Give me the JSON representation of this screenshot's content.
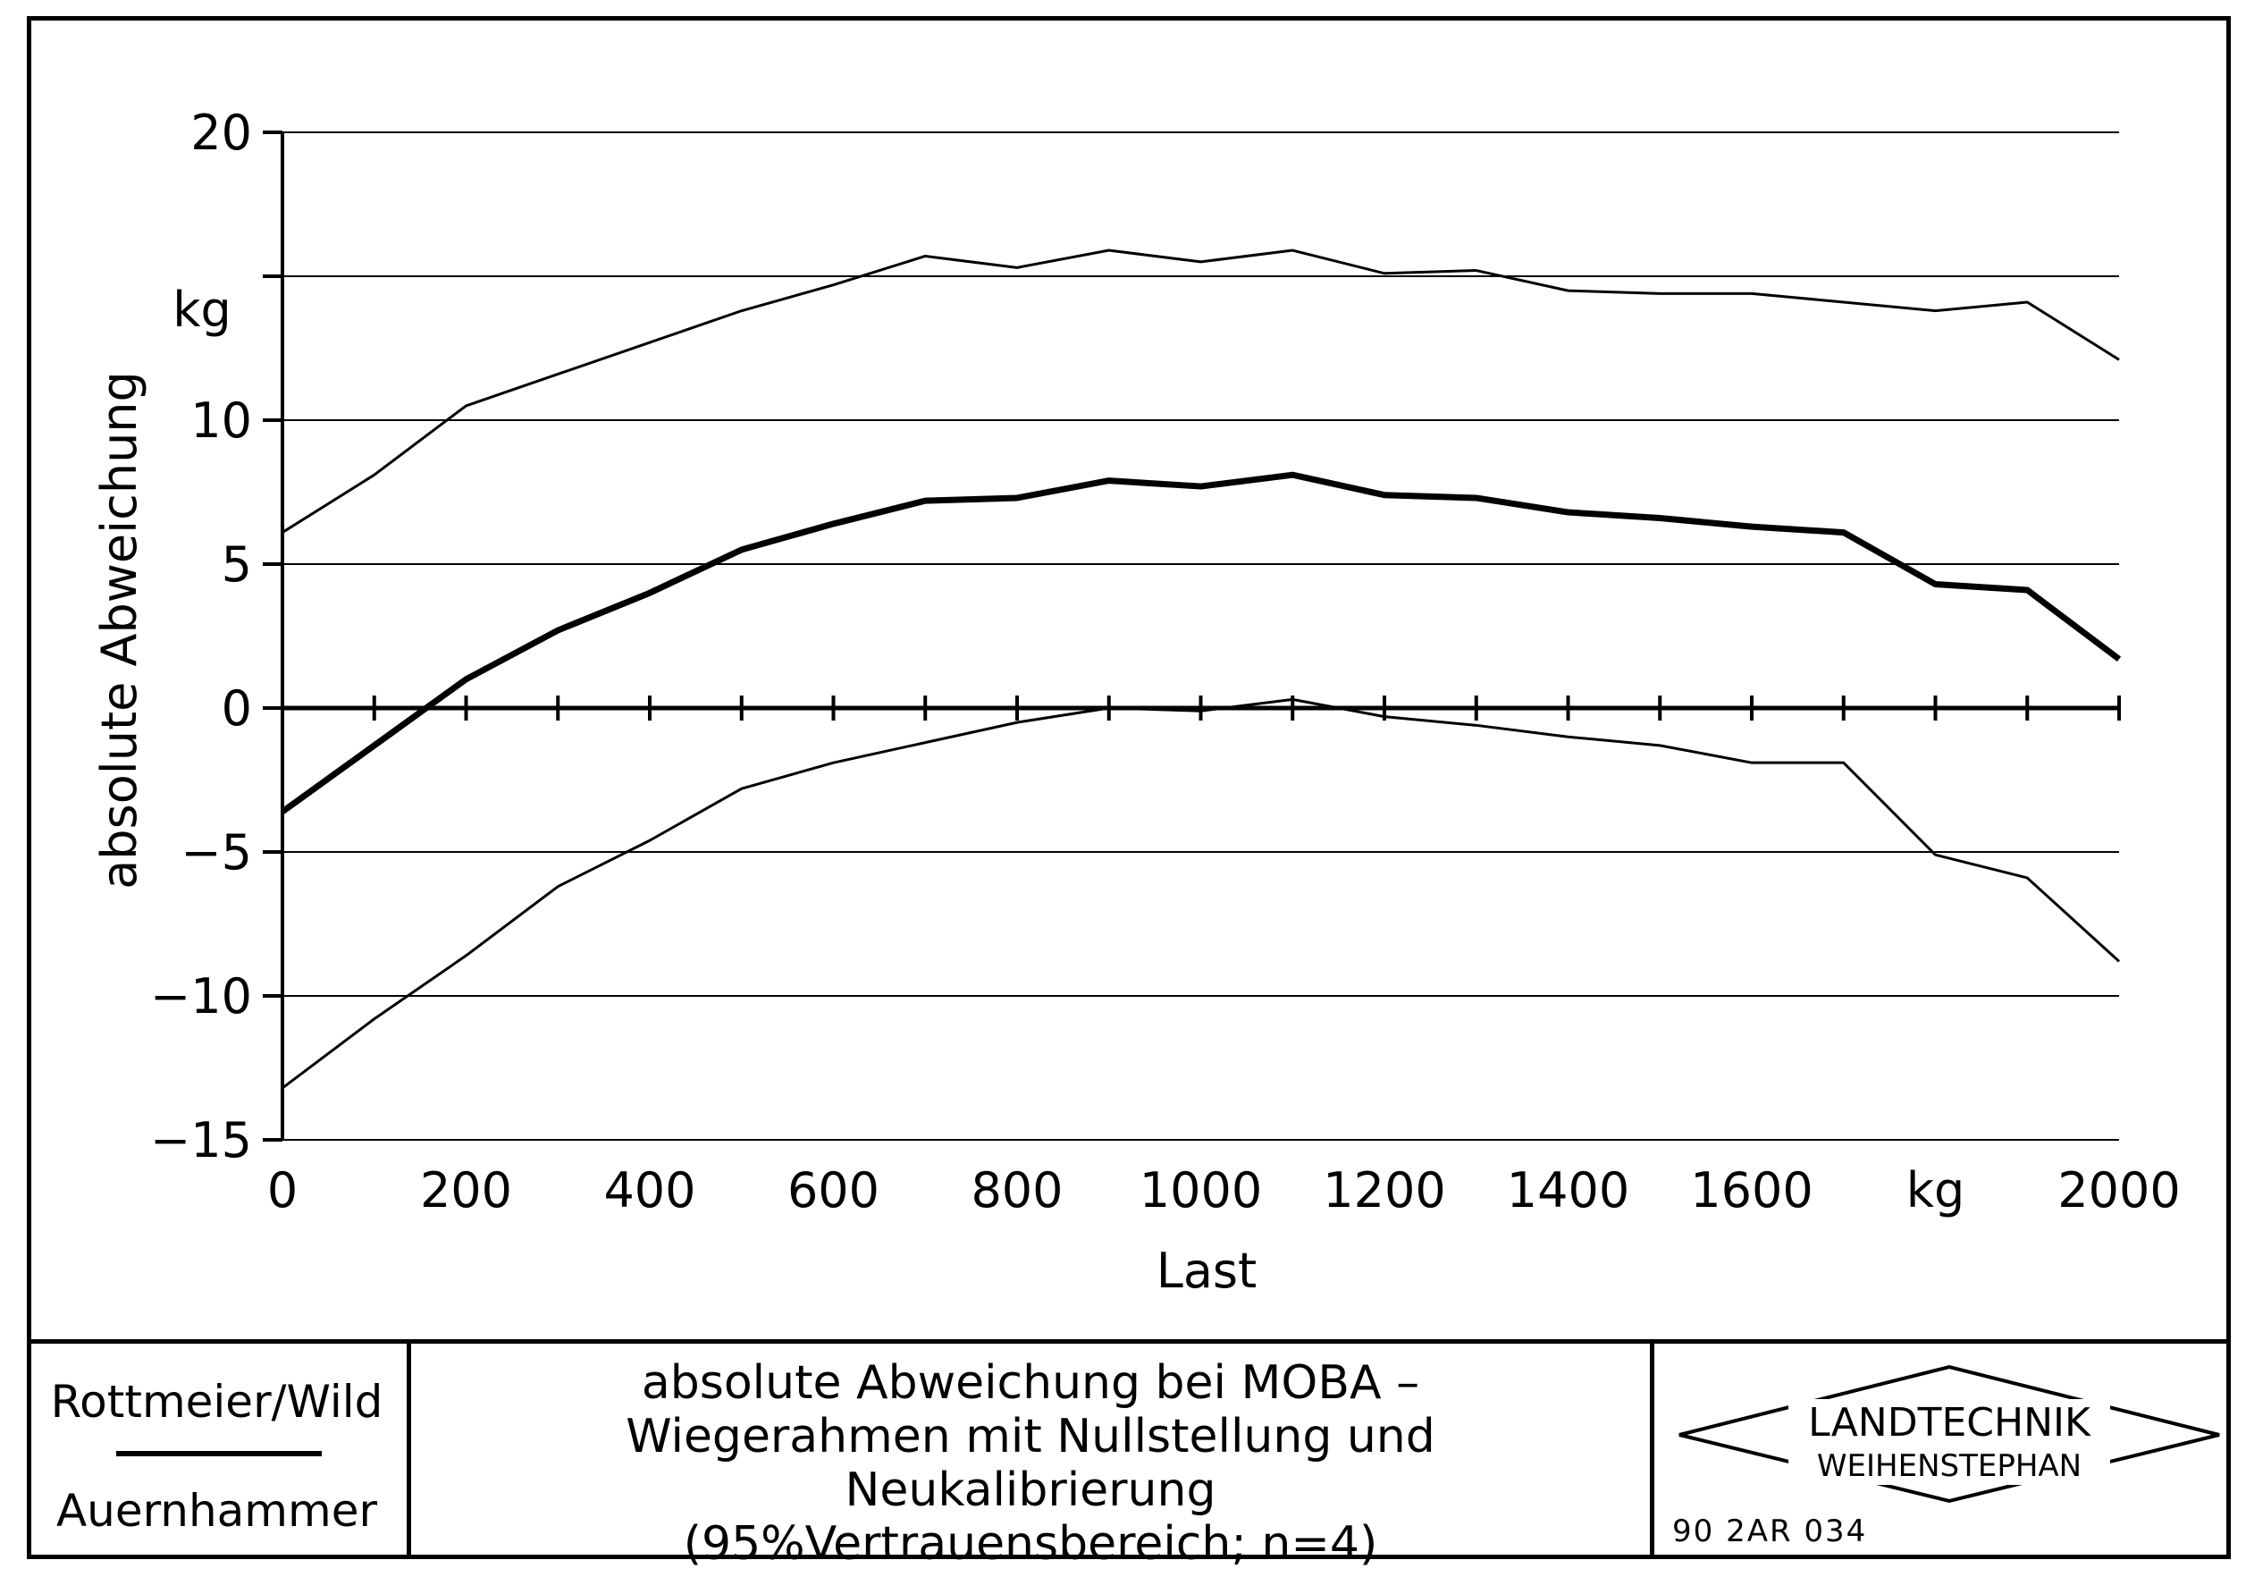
{
  "chart_data": {
    "type": "line",
    "xlabel": "Last",
    "ylabel": "absolute Abweichung",
    "x_unit": "kg",
    "y_unit": "kg",
    "xlim": [
      0,
      2000
    ],
    "ylim": [
      -15,
      20
    ],
    "x_tick_labels": [
      "0",
      "200",
      "400",
      "600",
      "800",
      "1000",
      "1200",
      "1400",
      "1600",
      "kg",
      "2000"
    ],
    "y_tick_labels": [
      "20",
      "10",
      "5",
      "0",
      "−5",
      "−10",
      "−15"
    ],
    "grid": true,
    "x": [
      0,
      100,
      200,
      300,
      400,
      500,
      600,
      700,
      800,
      900,
      1000,
      1100,
      1200,
      1300,
      1400,
      1500,
      1600,
      1700,
      1800,
      1900,
      2000
    ],
    "series": [
      {
        "style": "thin",
        "values": [
          6.1,
          8.1,
          10.5,
          11.6,
          12.7,
          13.8,
          14.7,
          15.7,
          15.3,
          15.9,
          15.5,
          15.9,
          15.1,
          15.2,
          14.5,
          14.4,
          14.4,
          14.1,
          13.8,
          14.1,
          12.1
        ]
      },
      {
        "style": "bold",
        "values": [
          -3.6,
          -1.3,
          1.0,
          2.7,
          4.0,
          5.5,
          6.4,
          7.2,
          7.3,
          7.9,
          7.7,
          8.1,
          7.4,
          7.3,
          6.8,
          6.6,
          6.3,
          6.1,
          4.3,
          4.1,
          1.7
        ]
      },
      {
        "style": "thin",
        "values": [
          -13.2,
          -10.8,
          -8.6,
          -6.2,
          -4.6,
          -2.8,
          -1.9,
          -1.2,
          -0.5,
          0.0,
          -0.1,
          0.3,
          -0.3,
          -0.6,
          -1.0,
          -1.3,
          -1.9,
          -1.9,
          -5.1,
          -5.9,
          -8.8
        ]
      }
    ]
  },
  "footer": {
    "author_top": "Rottmeier/Wild",
    "author_bottom": "Auernhammer",
    "title_lines": [
      "absolute Abweichung bei MOBA –",
      "Wiegerahmen mit Nullstellung und",
      "Neukalibrierung",
      "(95%Vertrauensbereich; n=4)"
    ],
    "logo_line1": "LANDTECHNIK",
    "logo_line2": "WEIHENSTEPHAN",
    "doc_code": "90 2AR 034"
  }
}
